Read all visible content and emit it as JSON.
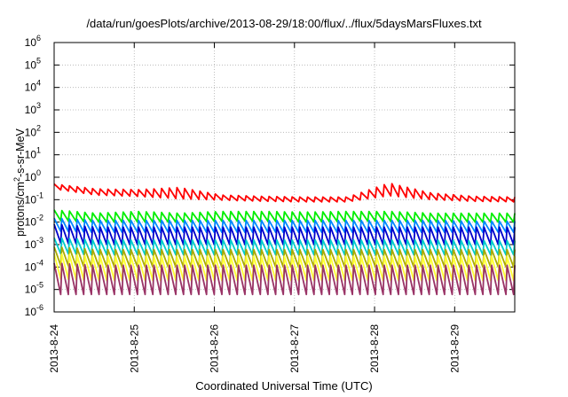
{
  "chart_data": {
    "type": "line",
    "title": "/data/run/goesPlots/archive/2013-08-29/18:00/flux/../flux/5daysMarsFluxes.txt",
    "xlabel": "Coordinated Universal Time (UTC)",
    "ylabel": {
      "prefix": "protons/cm",
      "sup": "2",
      "suffix": "-s-sr-MeV"
    },
    "yscale": "log",
    "ylim": [
      1e-06,
      1000000.0
    ],
    "ytick_labels": [
      {
        "base": "10",
        "exp": "-6"
      },
      {
        "base": "10",
        "exp": "-5"
      },
      {
        "base": "10",
        "exp": "-4"
      },
      {
        "base": "10",
        "exp": "-3"
      },
      {
        "base": "10",
        "exp": "-2"
      },
      {
        "base": "10",
        "exp": "-1"
      },
      {
        "base": "10",
        "exp": "0"
      },
      {
        "base": "10",
        "exp": "1"
      },
      {
        "base": "10",
        "exp": "2"
      },
      {
        "base": "10",
        "exp": "3"
      },
      {
        "base": "10",
        "exp": "4"
      },
      {
        "base": "10",
        "exp": "5"
      },
      {
        "base": "10",
        "exp": "6"
      }
    ],
    "xlim": [
      "2013-08-24T00:00",
      "2013-08-29T18:00"
    ],
    "xtick_labels": [
      "2013-8-24",
      "2013-8-25",
      "2013-8-26",
      "2013-8-27",
      "2013-8-28",
      "2013-8-29"
    ],
    "grid": true,
    "legend": "none",
    "series": [
      {
        "color": "#ff0000",
        "peaks": [
          0.5,
          0.3,
          0.28,
          0.35,
          0.16,
          0.14,
          0.13,
          0.13,
          0.55,
          0.2,
          0.14,
          0.13
        ],
        "troughs": [
          0.3,
          0.16,
          0.14,
          0.11,
          0.095,
          0.085,
          0.08,
          0.08,
          0.15,
          0.1,
          0.085,
          0.08
        ],
        "sawteeth": 60
      },
      {
        "color": "#00ee00",
        "peaks": [
          0.035,
          0.025,
          0.03,
          0.025,
          0.03,
          0.03,
          0.028,
          0.03,
          0.03,
          0.025,
          0.025,
          0.025
        ],
        "troughs": [
          0.012,
          0.01,
          0.01,
          0.01,
          0.011,
          0.011,
          0.01,
          0.011,
          0.011,
          0.01,
          0.01,
          0.01
        ],
        "sawteeth": 60
      },
      {
        "color": "#0088ff",
        "peaks": [
          0.015,
          0.012,
          0.012,
          0.012,
          0.012,
          0.012,
          0.012,
          0.012,
          0.012,
          0.012,
          0.011,
          0.011
        ],
        "troughs": [
          0.004,
          0.0035,
          0.0035,
          0.0035,
          0.0035,
          0.0035,
          0.0035,
          0.0035,
          0.0035,
          0.0035,
          0.0035,
          0.0035
        ],
        "sawteeth": 60
      },
      {
        "color": "#0000cc",
        "peaks": [
          0.008,
          0.006,
          0.006,
          0.006,
          0.006,
          0.006,
          0.006,
          0.006,
          0.006,
          0.006,
          0.006,
          0.006
        ],
        "troughs": [
          0.0012,
          0.001,
          0.001,
          0.001,
          0.001,
          0.001,
          0.001,
          0.001,
          0.001,
          0.001,
          0.001,
          0.001
        ],
        "sawteeth": 60
      },
      {
        "color": "#00cccc",
        "peaks": [
          0.002,
          0.0016,
          0.0016,
          0.0016,
          0.0016,
          0.0016,
          0.0016,
          0.0016,
          0.0016,
          0.0016,
          0.0015,
          0.0015
        ],
        "troughs": [
          0.0004,
          0.00035,
          0.00035,
          0.00035,
          0.00035,
          0.00035,
          0.00035,
          0.00035,
          0.00035,
          0.00035,
          0.00035,
          0.00035
        ],
        "sawteeth": 60
      },
      {
        "color": "#aaaa00",
        "peaks": [
          0.0008,
          0.0006,
          0.0006,
          0.0006,
          0.0006,
          0.0006,
          0.0006,
          0.0006,
          0.0006,
          0.0006,
          0.0006,
          0.0006
        ],
        "troughs": [
          0.00012,
          0.0001,
          0.0001,
          0.0001,
          0.0001,
          0.0001,
          0.0001,
          0.0001,
          0.0001,
          0.0001,
          0.0001,
          0.0001
        ],
        "sawteeth": 60
      },
      {
        "color": "#ffff33",
        "peaks": [
          0.0004,
          0.0003,
          0.0003,
          0.0003,
          0.0003,
          0.0003,
          0.0003,
          0.0003,
          0.0003,
          0.0003,
          0.0003,
          0.0003
        ],
        "troughs": [
          3e-05,
          2.5e-05,
          2.5e-05,
          2.5e-05,
          2.5e-05,
          2.5e-05,
          2.5e-05,
          2.5e-05,
          2.5e-05,
          2.5e-05,
          2.5e-05,
          2.5e-05
        ],
        "sawteeth": 60
      },
      {
        "color": "#993366",
        "peaks": [
          0.00015,
          0.00012,
          0.00012,
          0.00012,
          0.00012,
          0.00012,
          0.00012,
          0.00012,
          0.00012,
          0.00012,
          0.00012,
          0.00012
        ],
        "troughs": [
          6e-06,
          6e-06,
          6e-06,
          6e-06,
          6e-06,
          6e-06,
          6e-06,
          6e-06,
          6e-06,
          6e-06,
          6e-06,
          6e-06
        ],
        "sawteeth": 60
      }
    ]
  }
}
